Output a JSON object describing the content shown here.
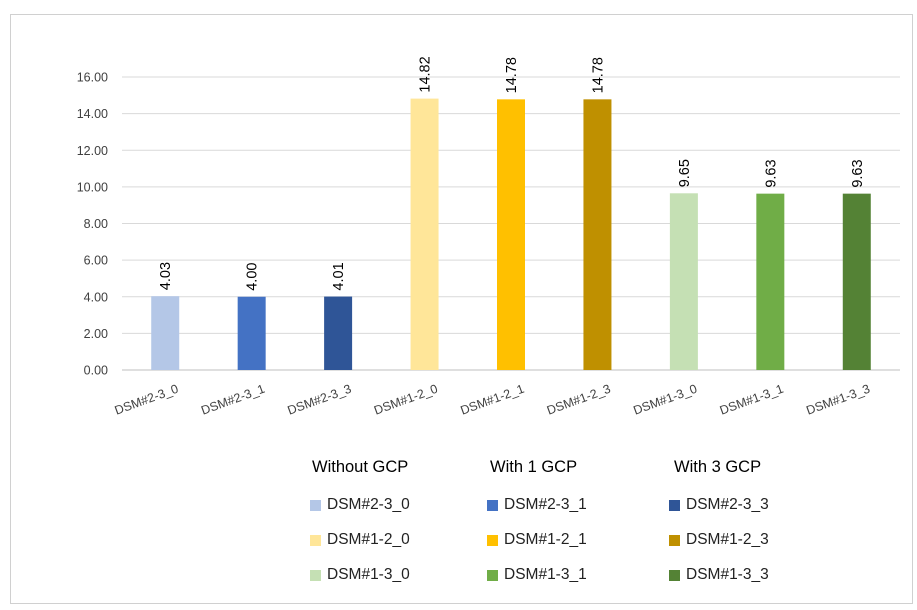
{
  "chart_data": {
    "type": "bar",
    "categories": [
      "DSM#2-3_0",
      "DSM#2-3_1",
      "DSM#2-3_3",
      "DSM#1-2_0",
      "DSM#1-2_1",
      "DSM#1-2_3",
      "DSM#1-3_0",
      "DSM#1-3_1",
      "DSM#1-3_3"
    ],
    "values": [
      4.03,
      4.0,
      4.01,
      14.82,
      14.78,
      14.78,
      9.65,
      9.63,
      9.63
    ],
    "value_labels": [
      "4.03",
      "4.00",
      "4.01",
      "14.82",
      "14.78",
      "14.78",
      "9.65",
      "9.63",
      "9.63"
    ],
    "colors": [
      "#b4c7e7",
      "#4472c4",
      "#2f5597",
      "#ffe699",
      "#ffc000",
      "#bf9000",
      "#c5e0b4",
      "#70ad47",
      "#548235"
    ],
    "ylim": [
      0,
      16
    ],
    "yticks": [
      "0.00",
      "2.00",
      "4.00",
      "6.00",
      "8.00",
      "10.00",
      "12.00",
      "14.00",
      "16.00"
    ],
    "grid": true,
    "legend_position": "bottom",
    "legend_groups": [
      {
        "title": "Without GCP",
        "entries": [
          "DSM#2-3_0",
          "DSM#1-2_0",
          "DSM#1-3_0"
        ],
        "colors": [
          "#b4c7e7",
          "#ffe699",
          "#c5e0b4"
        ]
      },
      {
        "title": "With 1 GCP",
        "entries": [
          "DSM#2-3_1",
          "DSM#1-2_1",
          "DSM#1-3_1"
        ],
        "colors": [
          "#4472c4",
          "#ffc000",
          "#70ad47"
        ]
      },
      {
        "title": "With 3 GCP",
        "entries": [
          "DSM#2-3_3",
          "DSM#1-2_3",
          "DSM#1-3_3"
        ],
        "colors": [
          "#2f5597",
          "#bf9000",
          "#548235"
        ]
      }
    ]
  }
}
